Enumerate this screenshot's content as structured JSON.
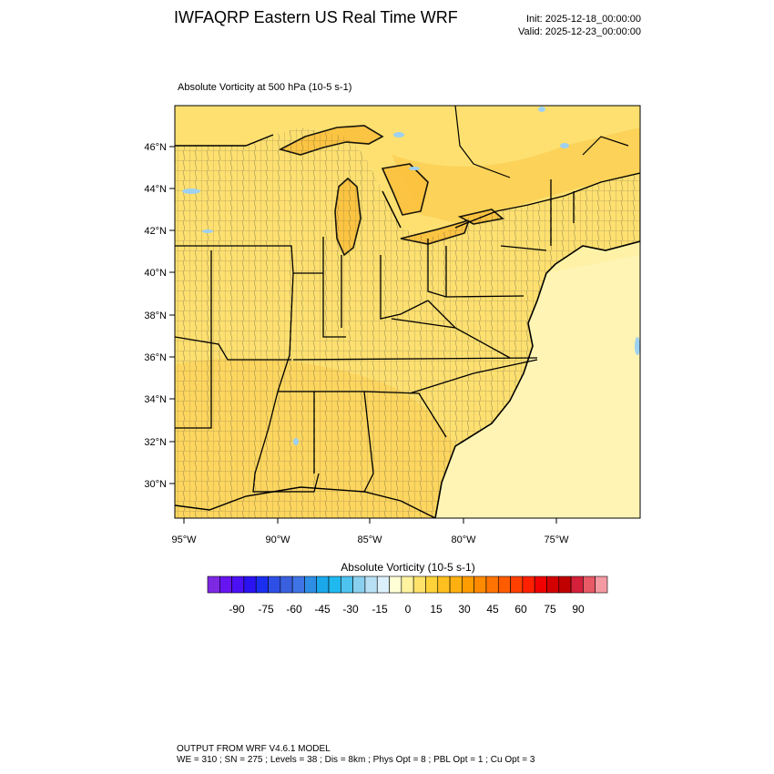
{
  "header": {
    "title": "IWFAQRP Eastern US Real Time WRF",
    "init": "Init: 2025-12-18_00:00:00",
    "valid": "Valid: 2025-12-23_00:00:00"
  },
  "field": {
    "title": "Absolute Vorticity at 500 hPa   (10-5 s-1)"
  },
  "map": {
    "lat_labels": [
      "46°N",
      "44°N",
      "42°N",
      "40°N",
      "38°N",
      "36°N",
      "34°N",
      "32°N",
      "30°N"
    ],
    "lon_labels": [
      "95°W",
      "90°W",
      "85°W",
      "80°W",
      "75°W"
    ],
    "colors": {
      "land_fill": "#fde070",
      "ocean_fill": "#fff2a6",
      "warm_fill": "#fbc23e",
      "water_fill": "#9ed1f0"
    }
  },
  "colorbar": {
    "title": "Absolute Vorticity  (10-5 s-1)",
    "tick_labels": [
      "-90",
      "-75",
      "-60",
      "-45",
      "-30",
      "-15",
      "0",
      "15",
      "30",
      "45",
      "60",
      "75",
      "90"
    ],
    "colors": [
      "#7d28e3",
      "#6614f0",
      "#4c10f5",
      "#2b12f0",
      "#1a2ef0",
      "#2e4fe6",
      "#3a60e0",
      "#3f74e6",
      "#2e8ee6",
      "#1aa8ea",
      "#1fb9f0",
      "#4ec3ef",
      "#8ad0ee",
      "#b8e0f4",
      "#dcf0fb",
      "#ffffd6",
      "#fff3a0",
      "#ffe26a",
      "#ffd23a",
      "#ffc020",
      "#ffb010",
      "#ff9c00",
      "#ff8a00",
      "#ff7400",
      "#ff5c00",
      "#ff4000",
      "#ff2000",
      "#f00000",
      "#d40000",
      "#c00000",
      "#d4203a",
      "#e85a66",
      "#f39aa2"
    ]
  },
  "footer": {
    "line1": "OUTPUT FROM WRF V4.6.1 MODEL",
    "line2": "WE = 310 ; SN = 275 ; Levels = 38 ; Dis = 8km ; Phys Opt = 8 ; PBL Opt = 1 ; Cu Opt = 3"
  }
}
